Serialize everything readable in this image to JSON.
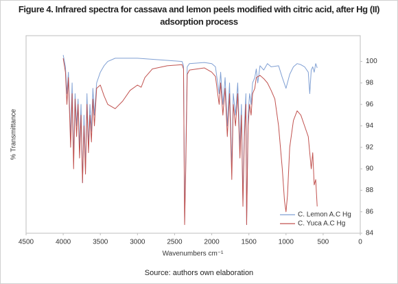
{
  "chart_data": {
    "type": "line",
    "title": "Figure 4. Infrared spectra for cassava and lemon peels modified with citric acid, after Hg (II) adsorption process",
    "xlabel": "Wavenumbers cm⁻¹",
    "ylabel": "% Transmittance",
    "source": "Source: authors own elaboration",
    "xlim": [
      4500,
      0
    ],
    "xticks": [
      4500,
      4000,
      3500,
      3000,
      2500,
      2000,
      1500,
      1000,
      500,
      0
    ],
    "ylim": [
      84,
      102.4
    ],
    "yticks": [
      84,
      86,
      88,
      90,
      92,
      94,
      96,
      98,
      100
    ],
    "y_axis_side": "right",
    "grid": false,
    "legend": "lower right",
    "series": [
      {
        "name": "C. Lemon A.C Hg",
        "color": "#7f9fd3",
        "x": [
          4000,
          3970,
          3950,
          3930,
          3900,
          3880,
          3860,
          3840,
          3820,
          3800,
          3780,
          3760,
          3740,
          3720,
          3700,
          3680,
          3660,
          3640,
          3620,
          3600,
          3580,
          3550,
          3500,
          3450,
          3400,
          3300,
          3000,
          2600,
          2400,
          2380,
          2365,
          2350,
          2330,
          2300,
          2100,
          2000,
          1950,
          1900,
          1880,
          1850,
          1820,
          1790,
          1760,
          1730,
          1710,
          1680,
          1650,
          1620,
          1600,
          1580,
          1560,
          1540,
          1530,
          1510,
          1490,
          1470,
          1450,
          1420,
          1400,
          1380,
          1350,
          1300,
          1250,
          1200,
          1100,
          1050,
          1000,
          950,
          900,
          850,
          800,
          750,
          700,
          680,
          660,
          640,
          620,
          600,
          580
        ],
        "values": [
          100.6,
          99.5,
          97,
          99,
          93,
          98,
          91,
          97,
          94,
          96.5,
          92,
          96,
          88.7,
          95,
          90,
          97,
          92,
          96,
          93.5,
          97.5,
          95,
          98,
          99,
          99.6,
          100,
          100.3,
          100.3,
          100.1,
          100,
          99.6,
          85,
          91,
          99.5,
          99.8,
          99.9,
          99.8,
          99.5,
          97,
          99,
          96,
          98.5,
          94,
          98,
          90,
          97,
          95,
          98,
          92,
          96,
          87,
          94,
          97,
          84.8,
          95,
          97,
          96,
          98,
          98.5,
          99.3,
          98,
          99.6,
          99.2,
          99.8,
          99.5,
          99.6,
          98.5,
          97.5,
          98.8,
          99.5,
          99.8,
          99.7,
          99.5,
          99,
          97,
          99.2,
          99.5,
          99,
          99.8,
          99.4
        ]
      },
      {
        "name": "C. Yuca A.C Hg",
        "color": "#c0504d",
        "x": [
          4000,
          3970,
          3950,
          3930,
          3900,
          3880,
          3860,
          3840,
          3820,
          3800,
          3780,
          3760,
          3740,
          3720,
          3700,
          3680,
          3660,
          3640,
          3620,
          3600,
          3580,
          3550,
          3500,
          3450,
          3400,
          3300,
          3200,
          3100,
          3000,
          2950,
          2900,
          2800,
          2600,
          2400,
          2380,
          2365,
          2350,
          2330,
          2300,
          2100,
          2000,
          1950,
          1900,
          1880,
          1850,
          1820,
          1790,
          1760,
          1730,
          1710,
          1680,
          1650,
          1620,
          1600,
          1580,
          1560,
          1540,
          1530,
          1510,
          1490,
          1470,
          1450,
          1420,
          1400,
          1350,
          1300,
          1250,
          1200,
          1150,
          1100,
          1050,
          1020,
          1000,
          980,
          950,
          900,
          850,
          800,
          750,
          700,
          660,
          640,
          620,
          600,
          580
        ],
        "values": [
          100.3,
          99,
          96,
          98.5,
          92,
          97,
          90,
          96.5,
          93,
          96,
          91,
          95,
          88.7,
          94,
          89.5,
          96,
          91.5,
          95,
          92.5,
          96.5,
          94,
          97.5,
          97.8,
          96.8,
          96,
          95.6,
          96.3,
          97.3,
          97.8,
          97.6,
          98.5,
          99.3,
          99.6,
          99.7,
          99.3,
          84.8,
          90,
          98.8,
          99.2,
          99.4,
          99,
          98.6,
          96,
          98,
          95,
          97.5,
          93,
          97,
          89,
          96,
          94,
          97,
          91,
          95,
          86.5,
          93,
          96,
          84.8,
          94,
          96,
          95,
          97,
          97.5,
          98.5,
          98.7,
          98.4,
          98,
          97.3,
          96.5,
          94,
          90,
          87,
          86,
          87.5,
          92,
          94.5,
          95.4,
          95,
          94,
          93,
          90,
          91.5,
          88.5,
          89,
          86.5
        ]
      }
    ]
  }
}
